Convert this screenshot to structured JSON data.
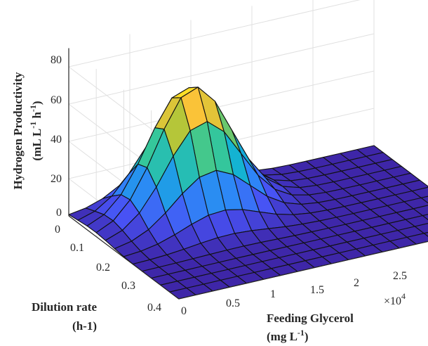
{
  "chart_data": {
    "type": "surface",
    "zlabel": {
      "line1": "Hydrogen Productivity",
      "line2_text": "(mL L",
      "line2_sup1": "-1",
      "line2_mid": " h",
      "line2_sup2": "-1",
      "line2_end": ")"
    },
    "xlabel": {
      "line1": "Feeding Glycerol",
      "line2_text": "(mg L",
      "line2_sup": "-1",
      "line2_end": ")"
    },
    "ylabel": {
      "line1": "Dilution rate",
      "line2": "(h-1)"
    },
    "x_multiplier": {
      "base": "×10",
      "exp": "4"
    },
    "x_ticks": [
      "0",
      "0.5",
      "1",
      "1.5",
      "2",
      "2.5"
    ],
    "y_ticks": [
      "0",
      "0.1",
      "0.2",
      "0.3",
      "0.4"
    ],
    "z_ticks": [
      "0",
      "20",
      "40",
      "60",
      "80"
    ],
    "x_range": [
      0,
      25000
    ],
    "y_range": [
      0,
      0.4
    ],
    "z_range": [
      0,
      90
    ],
    "colormap": "parula",
    "grid": true,
    "peak": {
      "x": 8000,
      "y": 0.09,
      "z": 69
    }
  }
}
